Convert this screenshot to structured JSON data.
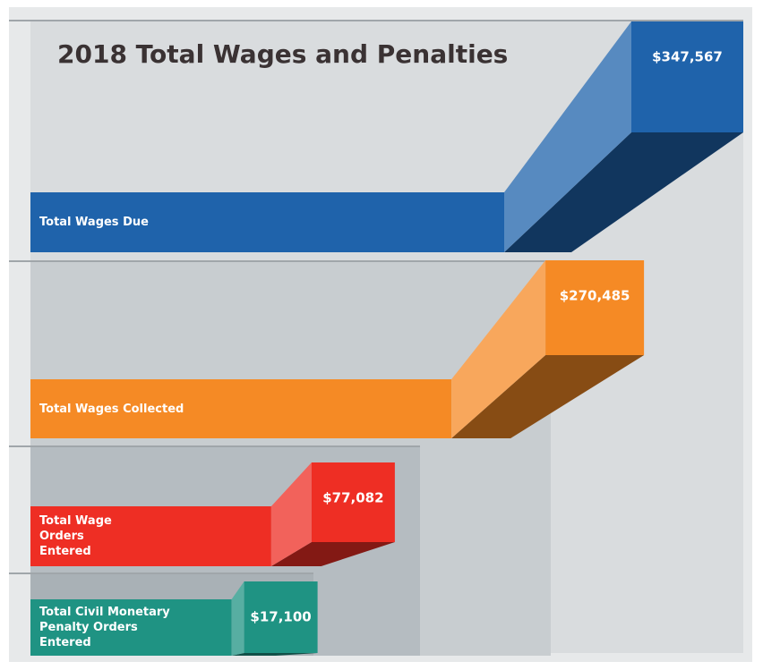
{
  "chart_data": {
    "type": "bar3d",
    "title": "2018 Total Wages and Penalties",
    "categories": [
      "Total Wages Due",
      "Total Wages Collected",
      "Total Wage Orders Entered",
      "Total Civil Monetary Penalty Orders Entered"
    ],
    "values": [
      347567,
      270485,
      77082,
      17100
    ],
    "value_labels": [
      "$347,567",
      "$270,485",
      "$77,082",
      "$17,100"
    ],
    "colors": [
      "#1f63ab",
      "#f58a25",
      "#ee2e24",
      "#1f9383"
    ]
  }
}
